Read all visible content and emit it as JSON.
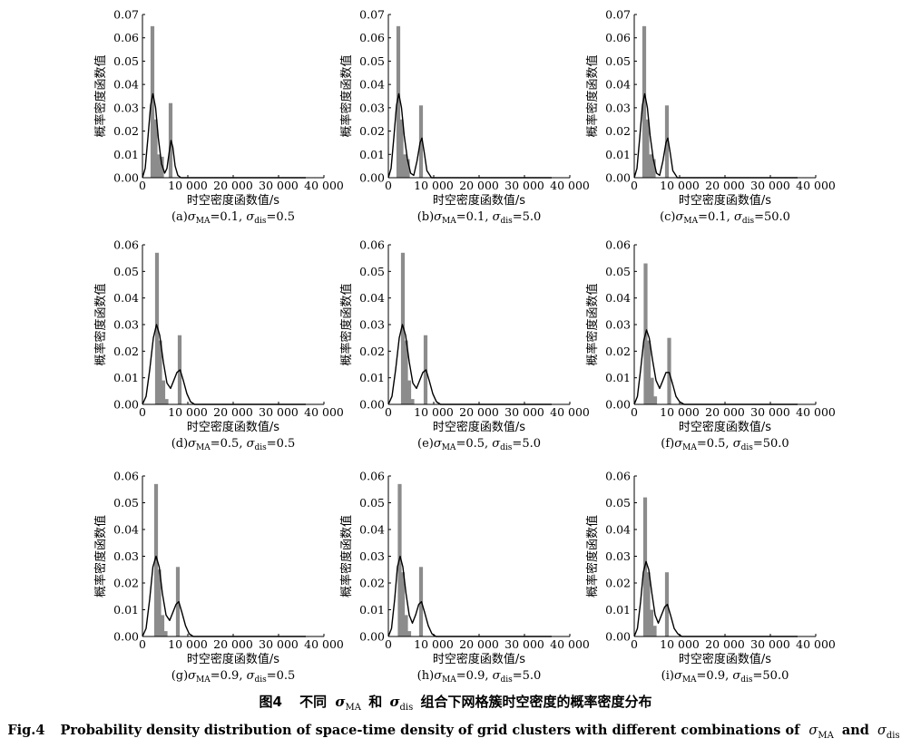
{
  "figure": {
    "caption_cn": {
      "fig_label": "图4",
      "text_before": "不同",
      "text_between": "和",
      "text_after": "组合下网格簇时空密度的概率密度分布"
    },
    "caption_en": {
      "fig_label": "Fig.4",
      "text": "Probability density distribution of space-time density of grid clusters with different combinations of",
      "text_and": "and"
    },
    "symbols": {
      "sigma": "σ",
      "ma": "MA",
      "dis": "dis"
    }
  },
  "chart_data": [
    {
      "type": "bar",
      "panel": "(a)",
      "sigma_MA": "0.1",
      "sigma_dis": "0.5",
      "xlabel": "时空密度函数值/s",
      "ylabel": "概率密度函数值",
      "xlim": [
        0,
        40000
      ],
      "ylim": [
        0,
        0.07
      ],
      "yticks": [
        "0.00",
        "0.01",
        "0.02",
        "0.03",
        "0.04",
        "0.05",
        "0.06",
        "0.07"
      ],
      "xticks": [
        "0",
        "10 000",
        "20 000",
        "30 000",
        "40 000"
      ],
      "histogram": {
        "bin_centers": [
          2200,
          2900,
          3600,
          4300,
          6200
        ],
        "density": [
          0.065,
          0.025,
          0.01,
          0.009,
          0.032
        ]
      },
      "line": {
        "x": [
          0,
          600,
          1200,
          1800,
          2300,
          2900,
          3500,
          4200,
          4900,
          5400,
          5900,
          6300,
          6700,
          7200,
          7800,
          8500,
          9500
        ],
        "y": [
          0,
          0.004,
          0.017,
          0.031,
          0.036,
          0.03,
          0.017,
          0.006,
          0.002,
          0.004,
          0.011,
          0.016,
          0.013,
          0.005,
          0.001,
          0,
          0
        ]
      }
    },
    {
      "type": "bar",
      "panel": "(b)",
      "sigma_MA": "0.1",
      "sigma_dis": "5.0",
      "xlabel": "时空密度函数值/s",
      "ylabel": "概率密度函数值",
      "xlim": [
        0,
        40000
      ],
      "ylim": [
        0,
        0.07
      ],
      "yticks": [
        "0.00",
        "0.01",
        "0.02",
        "0.03",
        "0.04",
        "0.05",
        "0.06",
        "0.07"
      ],
      "xticks": [
        "0",
        "10 000",
        "20 000",
        "30 000",
        "40 000"
      ],
      "histogram": {
        "bin_centers": [
          2200,
          2900,
          3600,
          4300,
          7200
        ],
        "density": [
          0.065,
          0.025,
          0.01,
          0.008,
          0.031
        ]
      },
      "line": {
        "x": [
          0,
          600,
          1200,
          1800,
          2300,
          2900,
          3500,
          4200,
          4900,
          5600,
          6300,
          7000,
          7400,
          7900,
          8500,
          9500,
          10500
        ],
        "y": [
          0,
          0.004,
          0.017,
          0.031,
          0.036,
          0.03,
          0.018,
          0.008,
          0.002,
          0.001,
          0.007,
          0.015,
          0.017,
          0.011,
          0.003,
          0,
          0
        ]
      }
    },
    {
      "type": "bar",
      "panel": "(c)",
      "sigma_MA": "0.1",
      "sigma_dis": "50.0",
      "xlabel": "时空密度函数值/s",
      "ylabel": "概率密度函数值",
      "xlim": [
        0,
        40000
      ],
      "ylim": [
        0,
        0.07
      ],
      "yticks": [
        "0.00",
        "0.01",
        "0.02",
        "0.03",
        "0.04",
        "0.05",
        "0.06",
        "0.07"
      ],
      "xticks": [
        "0",
        "10 000",
        "20 000",
        "30 000",
        "40 000"
      ],
      "histogram": {
        "bin_centers": [
          2200,
          2900,
          3600,
          4300,
          7200
        ],
        "density": [
          0.065,
          0.025,
          0.01,
          0.008,
          0.031
        ]
      },
      "line": {
        "x": [
          0,
          600,
          1200,
          1800,
          2300,
          2900,
          3500,
          4200,
          4900,
          5600,
          6300,
          7000,
          7400,
          7900,
          8500,
          9500,
          10500
        ],
        "y": [
          0,
          0.004,
          0.017,
          0.031,
          0.036,
          0.03,
          0.018,
          0.008,
          0.002,
          0.001,
          0.007,
          0.015,
          0.017,
          0.011,
          0.003,
          0,
          0
        ]
      }
    },
    {
      "type": "bar",
      "panel": "(d)",
      "sigma_MA": "0.5",
      "sigma_dis": "0.5",
      "xlabel": "时空密度函数值/s",
      "ylabel": "概率密度函数值",
      "xlim": [
        0,
        40000
      ],
      "ylim": [
        0,
        0.06
      ],
      "yticks": [
        "0.00",
        "0.01",
        "0.02",
        "0.03",
        "0.04",
        "0.05",
        "0.06"
      ],
      "xticks": [
        "0",
        "10 000",
        "20 000",
        "30 000",
        "40 000"
      ],
      "histogram": {
        "bin_centers": [
          3200,
          3900,
          4600,
          5300,
          8200
        ],
        "density": [
          0.057,
          0.024,
          0.009,
          0.002,
          0.026
        ]
      },
      "line": {
        "x": [
          0,
          800,
          1600,
          2400,
          3100,
          3800,
          4600,
          5400,
          6200,
          6900,
          7600,
          8300,
          9000,
          9800,
          10600,
          11500,
          12500
        ],
        "y": [
          0,
          0.003,
          0.013,
          0.025,
          0.03,
          0.026,
          0.016,
          0.008,
          0.006,
          0.009,
          0.012,
          0.013,
          0.009,
          0.004,
          0.001,
          0,
          0
        ]
      }
    },
    {
      "type": "bar",
      "panel": "(e)",
      "sigma_MA": "0.5",
      "sigma_dis": "5.0",
      "xlabel": "时空密度函数值/s",
      "ylabel": "概率密度函数值",
      "xlim": [
        0,
        40000
      ],
      "ylim": [
        0,
        0.06
      ],
      "yticks": [
        "0.00",
        "0.01",
        "0.02",
        "0.03",
        "0.04",
        "0.05",
        "0.06"
      ],
      "xticks": [
        "0",
        "10 000",
        "20 000",
        "30 000",
        "40 000"
      ],
      "histogram": {
        "bin_centers": [
          3200,
          3900,
          4600,
          5300,
          8200
        ],
        "density": [
          0.057,
          0.024,
          0.009,
          0.002,
          0.026
        ]
      },
      "line": {
        "x": [
          0,
          800,
          1600,
          2400,
          3100,
          3800,
          4600,
          5400,
          6200,
          6900,
          7600,
          8300,
          9000,
          9800,
          10600,
          11500,
          12500
        ],
        "y": [
          0,
          0.003,
          0.013,
          0.025,
          0.03,
          0.026,
          0.016,
          0.008,
          0.006,
          0.009,
          0.012,
          0.013,
          0.009,
          0.004,
          0.001,
          0,
          0
        ]
      }
    },
    {
      "type": "bar",
      "panel": "(f)",
      "sigma_MA": "0.5",
      "sigma_dis": "50.0",
      "xlabel": "时空密度函数值/s",
      "ylabel": "概率密度函数值",
      "xlim": [
        0,
        40000
      ],
      "ylim": [
        0,
        0.06
      ],
      "yticks": [
        "0.00",
        "0.01",
        "0.02",
        "0.03",
        "0.04",
        "0.05",
        "0.06"
      ],
      "xticks": [
        "0",
        "10 000",
        "20 000",
        "30 000",
        "40 000"
      ],
      "histogram": {
        "bin_centers": [
          2500,
          3200,
          3900,
          4600,
          7700
        ],
        "density": [
          0.053,
          0.024,
          0.01,
          0.003,
          0.025
        ]
      },
      "line": {
        "x": [
          0,
          700,
          1400,
          2100,
          2700,
          3300,
          4000,
          4800,
          5600,
          6300,
          7000,
          7700,
          8400,
          9200,
          10000,
          11000,
          12000
        ],
        "y": [
          0,
          0.003,
          0.013,
          0.024,
          0.028,
          0.025,
          0.017,
          0.009,
          0.006,
          0.009,
          0.012,
          0.012,
          0.008,
          0.003,
          0.001,
          0,
          0
        ]
      }
    },
    {
      "type": "bar",
      "panel": "(g)",
      "sigma_MA": "0.9",
      "sigma_dis": "0.5",
      "xlabel": "时空密度函数值/s",
      "ylabel": "概率密度函数值",
      "xlim": [
        0,
        40000
      ],
      "ylim": [
        0,
        0.06
      ],
      "yticks": [
        "0.00",
        "0.01",
        "0.02",
        "0.03",
        "0.04",
        "0.05",
        "0.06"
      ],
      "xticks": [
        "0",
        "10 000",
        "20 000",
        "30 000",
        "40 000"
      ],
      "histogram": {
        "bin_centers": [
          3000,
          3700,
          4400,
          5100,
          7800
        ],
        "density": [
          0.057,
          0.025,
          0.008,
          0.002,
          0.026
        ]
      },
      "line": {
        "x": [
          0,
          800,
          1600,
          2300,
          3000,
          3700,
          4400,
          5200,
          6000,
          6700,
          7400,
          8000,
          8700,
          9500,
          10300,
          11200,
          12200
        ],
        "y": [
          0,
          0.003,
          0.014,
          0.026,
          0.03,
          0.026,
          0.016,
          0.008,
          0.006,
          0.009,
          0.012,
          0.013,
          0.009,
          0.004,
          0.001,
          0,
          0
        ]
      }
    },
    {
      "type": "bar",
      "panel": "(h)",
      "sigma_MA": "0.9",
      "sigma_dis": "5.0",
      "xlabel": "时空密度函数值/s",
      "ylabel": "概率密度函数值",
      "xlim": [
        0,
        40000
      ],
      "ylim": [
        0,
        0.06
      ],
      "yticks": [
        "0.00",
        "0.01",
        "0.02",
        "0.03",
        "0.04",
        "0.05",
        "0.06"
      ],
      "xticks": [
        "0",
        "10 000",
        "20 000",
        "30 000",
        "40 000"
      ],
      "histogram": {
        "bin_centers": [
          2500,
          3200,
          3900,
          4600,
          7200
        ],
        "density": [
          0.057,
          0.024,
          0.008,
          0.002,
          0.026
        ]
      },
      "line": {
        "x": [
          0,
          700,
          1400,
          2000,
          2600,
          3200,
          3900,
          4600,
          5300,
          6000,
          6700,
          7300,
          8000,
          8800,
          9600,
          10500,
          11500
        ],
        "y": [
          0,
          0.003,
          0.014,
          0.026,
          0.03,
          0.026,
          0.016,
          0.008,
          0.005,
          0.008,
          0.012,
          0.013,
          0.009,
          0.004,
          0.001,
          0,
          0
        ]
      }
    },
    {
      "type": "bar",
      "panel": "(i)",
      "sigma_MA": "0.9",
      "sigma_dis": "50.0",
      "xlabel": "时空密度函数值/s",
      "ylabel": "概率密度函数值",
      "xlim": [
        0,
        40000
      ],
      "ylim": [
        0,
        0.06
      ],
      "yticks": [
        "0.00",
        "0.01",
        "0.02",
        "0.03",
        "0.04",
        "0.05",
        "0.06"
      ],
      "xticks": [
        "0",
        "10 000",
        "20 000",
        "30 000",
        "40 000"
      ],
      "histogram": {
        "bin_centers": [
          2400,
          3100,
          3800,
          4500,
          7200
        ],
        "density": [
          0.052,
          0.024,
          0.01,
          0.004,
          0.024
        ]
      },
      "line": {
        "x": [
          0,
          700,
          1400,
          2000,
          2600,
          3200,
          3900,
          4600,
          5300,
          6000,
          6700,
          7300,
          8000,
          8800,
          9600,
          10500,
          11500
        ],
        "y": [
          0,
          0.003,
          0.013,
          0.024,
          0.028,
          0.025,
          0.016,
          0.008,
          0.005,
          0.008,
          0.011,
          0.012,
          0.008,
          0.003,
          0.001,
          0,
          0
        ]
      }
    }
  ]
}
